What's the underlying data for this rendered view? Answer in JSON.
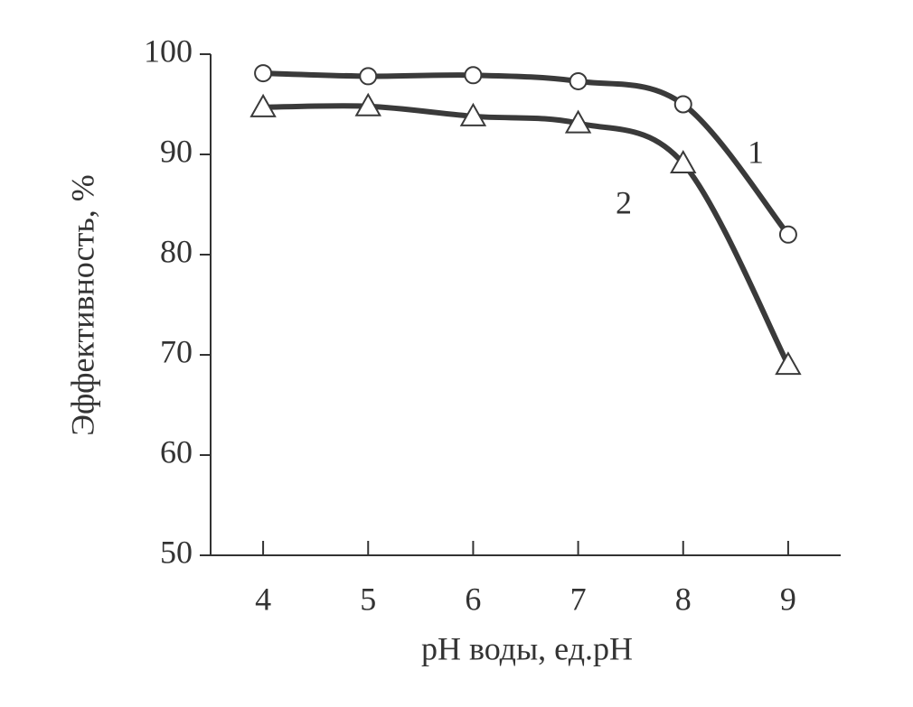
{
  "chart_data": {
    "type": "line",
    "x_label": "pH воды, ед.pH",
    "y_label": "Эффективность, %",
    "x": [
      4,
      5,
      6,
      7,
      8,
      9
    ],
    "series": [
      {
        "name": "1",
        "color": "#3a3a3a",
        "marker": "circle",
        "values": [
          98.1,
          97.8,
          97.9,
          97.3,
          95.0,
          82.0
        ]
      },
      {
        "name": "2",
        "color": "#3a3a3a",
        "marker": "triangle",
        "values": [
          94.7,
          94.8,
          93.8,
          93.1,
          89.1,
          69.0
        ]
      }
    ],
    "xlim": [
      3.5,
      9.5
    ],
    "xticks": [
      4,
      5,
      6,
      7,
      8,
      9
    ],
    "ylim": [
      50,
      100
    ],
    "yticks": [
      50,
      60,
      70,
      80,
      90,
      100
    ],
    "smooth": true,
    "grid": false
  }
}
